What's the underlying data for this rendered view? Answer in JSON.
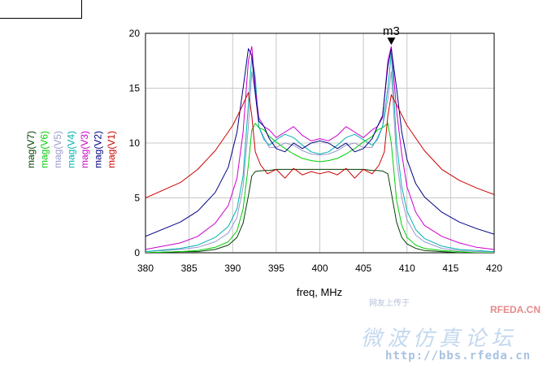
{
  "chart_data": {
    "type": "line",
    "title": "",
    "xlabel": "freq, MHz",
    "ylabel": "",
    "xlim": [
      380,
      420
    ],
    "ylim": [
      0,
      20
    ],
    "x_ticks": [
      "380",
      "385",
      "390",
      "395",
      "400",
      "405",
      "410",
      "415",
      "420"
    ],
    "y_ticks": [
      "0",
      "5",
      "10",
      "15",
      "20"
    ],
    "grid": true,
    "legend_position": "left, vertical",
    "marker": {
      "label": "m3",
      "x": 408.2,
      "y": 18.8
    },
    "series": [
      {
        "name": "mag(V1)",
        "color": "#cc0000",
        "x": [
          380,
          384,
          386,
          388,
          390,
          391,
          391.8,
          392.2,
          392.6,
          393.2,
          394,
          395,
          396,
          397,
          398,
          399,
          400,
          401,
          402,
          403,
          404,
          405,
          406,
          406.8,
          407.4,
          407.8,
          408.2,
          409,
          410,
          412,
          414,
          416,
          418,
          420
        ],
        "values": [
          5.0,
          6.4,
          7.6,
          9.3,
          11.6,
          13.2,
          14.6,
          12.5,
          9.2,
          8.0,
          7.2,
          7.6,
          6.8,
          7.7,
          7.1,
          7.4,
          7.2,
          7.4,
          7.1,
          7.7,
          6.8,
          7.6,
          7.2,
          8.0,
          9.2,
          12.5,
          14.4,
          13.2,
          11.6,
          9.3,
          7.6,
          6.6,
          5.9,
          5.3
        ]
      },
      {
        "name": "mag(V2)",
        "color": "#000080",
        "x": [
          380,
          384,
          386,
          388,
          389.5,
          390.5,
          391.2,
          391.8,
          392.2,
          392.6,
          393,
          393.6,
          394.2,
          395,
          396,
          397,
          398,
          399,
          400,
          401,
          402,
          403,
          404,
          405,
          406,
          406.6,
          407.2,
          407.8,
          408.2,
          408.8,
          409.4,
          410,
          411,
          412,
          414,
          416,
          418,
          420
        ],
        "values": [
          1.5,
          2.8,
          3.8,
          5.5,
          7.8,
          11.0,
          15.0,
          18.6,
          18.0,
          14.5,
          12.0,
          11.5,
          10.4,
          9.5,
          9.2,
          10.0,
          9.5,
          10.0,
          10.2,
          10.0,
          9.5,
          10.0,
          9.2,
          9.5,
          10.4,
          11.5,
          12.5,
          17.0,
          18.6,
          15.0,
          11.0,
          8.5,
          6.3,
          5.1,
          3.7,
          2.8,
          2.2,
          1.7
        ]
      },
      {
        "name": "mag(V3)",
        "color": "#cc00cc",
        "x": [
          380,
          384,
          386,
          388,
          389.5,
          390.5,
          391.2,
          391.8,
          392.2,
          392.6,
          393,
          393.6,
          394.2,
          395,
          396,
          397,
          398,
          399,
          400,
          401,
          402,
          403,
          404,
          405,
          406,
          406.6,
          407.2,
          407.8,
          408.2,
          408.8,
          409.4,
          410,
          411,
          412,
          414,
          416,
          418,
          420
        ],
        "values": [
          0.3,
          0.9,
          1.5,
          2.7,
          4.3,
          6.8,
          11.0,
          17.5,
          18.8,
          15.0,
          12.3,
          11.5,
          11.2,
          10.5,
          11.0,
          11.5,
          10.7,
          10.2,
          10.4,
          10.2,
          10.7,
          11.5,
          11.0,
          10.5,
          11.2,
          11.5,
          12.3,
          17.5,
          18.8,
          13.0,
          9.0,
          6.0,
          3.7,
          2.5,
          1.5,
          0.9,
          0.5,
          0.3
        ]
      },
      {
        "name": "mag(V4)",
        "color": "#00b0b0",
        "x": [
          380,
          384,
          386,
          388,
          389.5,
          390.5,
          391.2,
          391.8,
          392.2,
          392.6,
          393,
          393.6,
          394.2,
          395,
          396,
          397,
          398,
          399,
          400,
          401,
          402,
          403,
          404,
          405,
          406,
          406.6,
          407.2,
          407.8,
          408.2,
          408.8,
          409.4,
          410,
          411,
          412,
          414,
          416,
          418,
          420
        ],
        "values": [
          0.1,
          0.4,
          0.7,
          1.4,
          2.4,
          4.0,
          7.0,
          13.5,
          18.0,
          16.0,
          11.5,
          10.3,
          9.8,
          10.3,
          10.8,
          10.5,
          9.8,
          9.2,
          9.0,
          9.2,
          9.8,
          10.5,
          10.8,
          10.3,
          9.8,
          10.3,
          11.5,
          15.0,
          18.2,
          10.0,
          6.0,
          3.8,
          2.1,
          1.3,
          0.6,
          0.3,
          0.2,
          0.1
        ]
      },
      {
        "name": "mag(V5)",
        "color": "#9999cc",
        "x": [
          380,
          384,
          386,
          388,
          389.5,
          390.5,
          391.2,
          391.8,
          392.2,
          392.6,
          393,
          393.6,
          394.2,
          395,
          396,
          397,
          398,
          399,
          400,
          401,
          402,
          403,
          404,
          405,
          406,
          406.6,
          407.2,
          407.8,
          408.2,
          408.8,
          409.4,
          410,
          411,
          412,
          414,
          416,
          418,
          420
        ],
        "values": [
          0.1,
          0.3,
          0.5,
          1.0,
          1.8,
          3.2,
          6.0,
          11.5,
          16.5,
          14.5,
          11.5,
          10.5,
          9.6,
          9.6,
          10.0,
          9.8,
          9.3,
          9.0,
          8.9,
          9.0,
          9.3,
          9.8,
          10.0,
          9.6,
          9.6,
          10.5,
          11.5,
          14.0,
          16.5,
          8.5,
          5.0,
          3.0,
          1.6,
          1.0,
          0.4,
          0.2,
          0.1,
          0.1
        ]
      },
      {
        "name": "mag(V6)",
        "color": "#00cc00",
        "x": [
          380,
          384,
          386,
          388,
          389.5,
          390.5,
          391.2,
          391.8,
          392.2,
          392.6,
          393,
          393.6,
          394.2,
          395,
          396,
          397,
          398,
          399,
          400,
          401,
          402,
          403,
          404,
          405,
          406,
          406.6,
          407.2,
          407.8,
          408.2,
          408.8,
          409.4,
          410,
          411,
          412,
          414,
          416,
          418,
          420
        ],
        "values": [
          0.0,
          0.1,
          0.2,
          0.5,
          1.0,
          2.0,
          4.0,
          8.0,
          11.2,
          11.8,
          11.4,
          11.2,
          10.6,
          10.1,
          9.5,
          9.0,
          8.6,
          8.4,
          8.3,
          8.4,
          8.6,
          9.0,
          9.5,
          10.1,
          10.6,
          11.2,
          11.4,
          11.8,
          10.0,
          4.8,
          2.5,
          1.4,
          0.7,
          0.4,
          0.2,
          0.1,
          0.0,
          0.0
        ]
      },
      {
        "name": "mag(V7)",
        "color": "#004000",
        "x": [
          380,
          384,
          386,
          388,
          389.5,
          390.5,
          391.2,
          391.8,
          392.2,
          392.6,
          393,
          393.6,
          394.2,
          395,
          396,
          397,
          398,
          399,
          400,
          401,
          402,
          403,
          404,
          405,
          406,
          406.6,
          407.2,
          407.8,
          408.2,
          408.8,
          409.4,
          410,
          411,
          412,
          414,
          416,
          418,
          420
        ],
        "values": [
          0.0,
          0.1,
          0.1,
          0.3,
          0.7,
          1.4,
          2.7,
          5.2,
          7.0,
          7.4,
          7.45,
          7.5,
          7.5,
          7.6,
          7.6,
          7.6,
          7.6,
          7.6,
          7.6,
          7.6,
          7.6,
          7.6,
          7.6,
          7.6,
          7.5,
          7.5,
          7.45,
          7.2,
          5.5,
          2.8,
          1.4,
          0.8,
          0.4,
          0.2,
          0.1,
          0.0,
          0.0,
          0.0
        ]
      }
    ]
  },
  "watermark": {
    "site": "RFEDA.CN",
    "small_text": "网友上传于",
    "title": "微波仿真论坛",
    "url": "http://bbs.rfeda.cn"
  }
}
